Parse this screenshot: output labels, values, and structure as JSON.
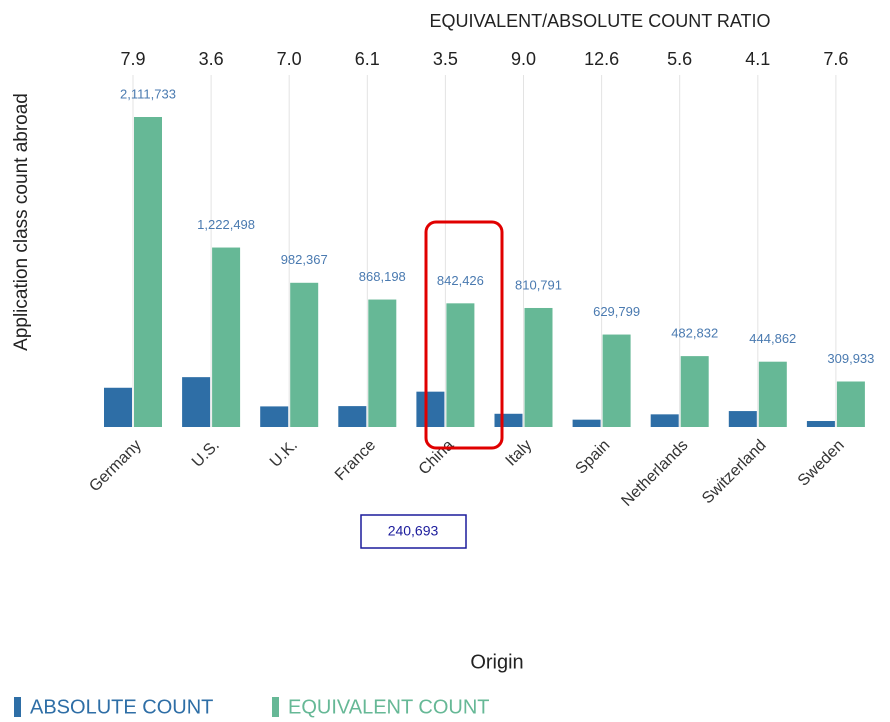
{
  "chart_data": {
    "type": "bar",
    "ratio_title": "EQUIVALENT/ABSOLUTE COUNT RATIO",
    "ylabel": "Application class count abroad",
    "xlabel": "Origin",
    "categories": [
      "Germany",
      "U.S.",
      "U.K.",
      "France",
      "China",
      "Italy",
      "Spain",
      "Netherlands",
      "Switzerland",
      "Sweden"
    ],
    "ratio_labels": [
      "7.9",
      "3.6",
      "7.0",
      "6.1",
      "3.5",
      "9.0",
      "12.6",
      "5.6",
      "4.1",
      "7.6"
    ],
    "series": [
      {
        "name": "ABSOLUTE COUNT",
        "color": "#2e6ea6",
        "values": [
          267308,
          339583,
          140338,
          142328,
          240693,
          90088,
          49984,
          86220,
          108503,
          40781
        ]
      },
      {
        "name": "EQUIVALENT COUNT",
        "color": "#66b896",
        "values": [
          2111733,
          1222498,
          982367,
          868198,
          842426,
          810791,
          629799,
          482832,
          444862,
          309933
        ],
        "value_labels": [
          "2,111,733",
          "1,222,498",
          "982,367",
          "868,198",
          "842,426",
          "810,791",
          "629,799",
          "482,832",
          "444,862",
          "309,933"
        ]
      }
    ],
    "annotation": "240,693",
    "legend": "bottom-left"
  }
}
